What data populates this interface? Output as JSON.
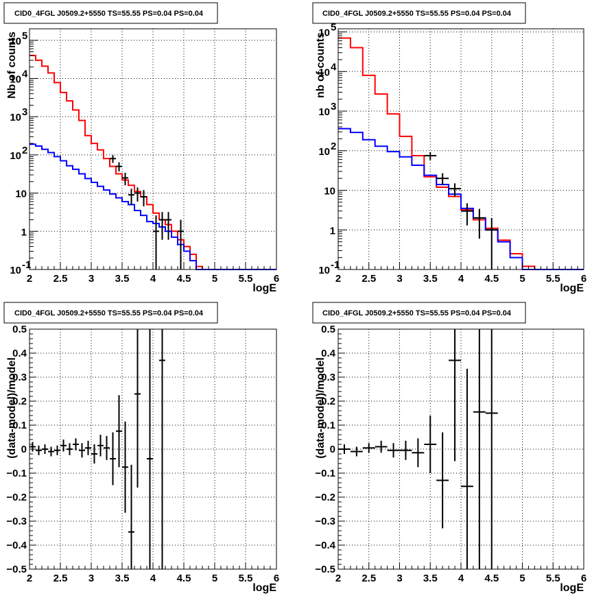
{
  "chart_data": [
    {
      "type": "line",
      "panel": "top-left",
      "title": "CID0_4FGL J0509.2+5550 TS=55.55 PS=0.04 PS=0.04",
      "xlabel": "logE",
      "ylabel": "Nb of counts",
      "xlim": [
        2,
        6
      ],
      "ylim": [
        0.1,
        200000
      ],
      "yscale": "log",
      "grid": true,
      "x_ticks": [
        "2",
        "2.5",
        "3",
        "3.5",
        "4",
        "4.5",
        "5",
        "5.5",
        "6"
      ],
      "y_ticks": [
        {
          "value": 0.1,
          "label": "10",
          "exp": "-1"
        },
        {
          "value": 1,
          "label": "1",
          "exp": ""
        },
        {
          "value": 10,
          "label": "10",
          "exp": ""
        },
        {
          "value": 100,
          "label": "10",
          "exp": "2"
        },
        {
          "value": 1000,
          "label": "10",
          "exp": "3"
        },
        {
          "value": 10000,
          "label": "10",
          "exp": "4"
        },
        {
          "value": 100000,
          "label": "10",
          "exp": "5"
        }
      ],
      "bin_edges": [
        2.0,
        2.1,
        2.2,
        2.3,
        2.4,
        2.5,
        2.6,
        2.7,
        2.8,
        2.9,
        3.0,
        3.1,
        3.2,
        3.3,
        3.4,
        3.5,
        3.6,
        3.7,
        3.8,
        3.9,
        4.0,
        4.1,
        4.2,
        4.3,
        4.4,
        4.5,
        4.6,
        4.7,
        4.8,
        4.9,
        5.0,
        5.1,
        5.2,
        5.3,
        5.4,
        5.5,
        5.6,
        5.7,
        5.8,
        5.9,
        6.0
      ],
      "series": [
        {
          "color": "#ff0000",
          "style": "step",
          "values": [
            40000,
            30000,
            21000,
            14000,
            7800,
            4300,
            2600,
            1500,
            800,
            320,
            200,
            135,
            80,
            50,
            32,
            22,
            16,
            11,
            8,
            5,
            3,
            2,
            1.5,
            1.0,
            0.6,
            0.4,
            0.25,
            0.12,
            0.1,
            0.1,
            0.1,
            0.1,
            0.1,
            0.1,
            0.1,
            0.1,
            0.1,
            0.1,
            0.1,
            0.1
          ]
        },
        {
          "color": "#0000ff",
          "style": "step",
          "values": [
            190,
            170,
            140,
            115,
            90,
            70,
            52,
            42,
            32,
            24,
            19,
            15,
            12,
            9.5,
            7.5,
            6,
            5,
            3.5,
            2.6,
            1.8,
            1.6,
            1.3,
            1.0,
            0.7,
            0.45,
            0.3,
            0.17,
            0.1,
            0.1,
            0.1,
            0.1,
            0.1,
            0.1,
            0.1,
            0.1,
            0.1,
            0.1,
            0.1,
            0.1,
            0.1
          ]
        },
        {
          "color": "#000000",
          "style": "errorbar",
          "points": [
            {
              "x": 3.35,
              "y": 80,
              "lo": 62,
              "hi": 98,
              "xerr": 0.05
            },
            {
              "x": 3.45,
              "y": 50,
              "lo": 37,
              "hi": 64,
              "xerr": 0.05
            },
            {
              "x": 3.55,
              "y": 25,
              "lo": 16,
              "hi": 34,
              "xerr": 0.05
            },
            {
              "x": 3.65,
              "y": 9,
              "lo": 5,
              "hi": 13,
              "xerr": 0.05
            },
            {
              "x": 3.75,
              "y": 10,
              "lo": 6,
              "hi": 14,
              "xerr": 0.05
            },
            {
              "x": 3.85,
              "y": 8,
              "lo": 4.5,
              "hi": 12,
              "xerr": 0.05
            },
            {
              "x": 4.05,
              "y": 1,
              "lo": 0.1,
              "hi": 2.6,
              "xerr": 0.05
            },
            {
              "x": 4.15,
              "y": 2,
              "lo": 0.6,
              "hi": 3.2,
              "xerr": 0.05
            },
            {
              "x": 4.25,
              "y": 2,
              "lo": 0.6,
              "hi": 3.2,
              "xerr": 0.05
            },
            {
              "x": 4.45,
              "y": 1,
              "lo": 0.1,
              "hi": 2.0,
              "xerr": 0.05
            }
          ]
        }
      ]
    },
    {
      "type": "line",
      "panel": "top-right",
      "title": "CID0_4FGL J0509.2+5550 TS=55.55 PS=0.04 PS=0.04",
      "xlabel": "logE",
      "ylabel": "nb of counts",
      "xlim": [
        2,
        6
      ],
      "ylim": [
        0.1,
        120000
      ],
      "yscale": "log",
      "grid": true,
      "x_ticks": [
        "2",
        "2.5",
        "3",
        "3.5",
        "4",
        "4.5",
        "5",
        "5.5",
        "6"
      ],
      "y_ticks": [
        {
          "value": 0.1,
          "label": "10",
          "exp": "-1"
        },
        {
          "value": 1,
          "label": "1",
          "exp": ""
        },
        {
          "value": 10,
          "label": "10",
          "exp": ""
        },
        {
          "value": 100,
          "label": "10",
          "exp": "2"
        },
        {
          "value": 1000,
          "label": "10",
          "exp": "3"
        },
        {
          "value": 10000,
          "label": "10",
          "exp": "4"
        },
        {
          "value": 100000,
          "label": "10",
          "exp": "5"
        }
      ],
      "bin_edges": [
        2.0,
        2.2,
        2.4,
        2.6,
        2.8,
        3.0,
        3.2,
        3.4,
        3.6,
        3.8,
        4.0,
        4.2,
        4.4,
        4.6,
        4.8,
        5.0,
        5.2,
        5.4,
        5.6,
        5.8,
        6.0
      ],
      "series": [
        {
          "color": "#ff0000",
          "style": "step",
          "values": [
            70000,
            40000,
            8000,
            2700,
            850,
            230,
            75,
            22,
            12,
            7,
            3.2,
            1.8,
            1.1,
            0.55,
            0.25,
            0.12,
            0.1,
            0.1,
            0.1,
            0.1
          ]
        },
        {
          "color": "#0000ff",
          "style": "step",
          "values": [
            360,
            290,
            190,
            130,
            95,
            70,
            43,
            24,
            14,
            8,
            3.5,
            2.0,
            1.0,
            0.5,
            0.2,
            0.1,
            0.1,
            0.1,
            0.1,
            0.1
          ]
        },
        {
          "color": "#000000",
          "style": "errorbar",
          "points": [
            {
              "x": 3.5,
              "y": 75,
              "lo": 58,
              "hi": 92,
              "xerr": 0.1
            },
            {
              "x": 3.7,
              "y": 20,
              "lo": 14,
              "hi": 27,
              "xerr": 0.1
            },
            {
              "x": 3.9,
              "y": 11,
              "lo": 7,
              "hi": 15,
              "xerr": 0.1
            },
            {
              "x": 4.1,
              "y": 3,
              "lo": 1.3,
              "hi": 4.7,
              "xerr": 0.1
            },
            {
              "x": 4.3,
              "y": 2,
              "lo": 0.6,
              "hi": 3.4,
              "xerr": 0.1
            },
            {
              "x": 4.5,
              "y": 1,
              "lo": 0.1,
              "hi": 2.0,
              "xerr": 0.1
            }
          ]
        }
      ]
    },
    {
      "type": "scatter",
      "panel": "bottom-left",
      "title": "CID0_4FGL J0509.2+5550 TS=55.55 PS=0.04 PS=0.04",
      "xlabel": "logE",
      "ylabel": "(data-model)/model",
      "xlim": [
        2,
        6
      ],
      "ylim": [
        -0.5,
        0.5
      ],
      "yscale": "linear",
      "grid": true,
      "x_ticks": [
        "2",
        "2.5",
        "3",
        "3.5",
        "4",
        "4.5",
        "5",
        "5.5",
        "6"
      ],
      "y_ticks": [
        {
          "value": -0.5,
          "label": "−0.5"
        },
        {
          "value": -0.4,
          "label": "−0.4"
        },
        {
          "value": -0.3,
          "label": "−0.3"
        },
        {
          "value": -0.2,
          "label": "−0.2"
        },
        {
          "value": -0.1,
          "label": "−0.1"
        },
        {
          "value": 0,
          "label": "0"
        },
        {
          "value": 0.1,
          "label": "0.1"
        },
        {
          "value": 0.2,
          "label": "0.2"
        },
        {
          "value": 0.3,
          "label": "0.3"
        },
        {
          "value": 0.4,
          "label": "0.4"
        },
        {
          "value": 0.5,
          "label": "0.5"
        }
      ],
      "series": [
        {
          "color": "#000000",
          "style": "errorbar",
          "points": [
            {
              "x": 2.05,
              "y": 0.01,
              "err": 0.02,
              "xerr": 0.05
            },
            {
              "x": 2.15,
              "y": -0.005,
              "err": 0.02,
              "xerr": 0.05
            },
            {
              "x": 2.25,
              "y": 0.0,
              "err": 0.02,
              "xerr": 0.05
            },
            {
              "x": 2.35,
              "y": -0.01,
              "err": 0.02,
              "xerr": 0.05
            },
            {
              "x": 2.45,
              "y": -0.005,
              "err": 0.02,
              "xerr": 0.05
            },
            {
              "x": 2.55,
              "y": 0.015,
              "err": 0.025,
              "xerr": 0.05
            },
            {
              "x": 2.65,
              "y": 0.0,
              "err": 0.025,
              "xerr": 0.05
            },
            {
              "x": 2.75,
              "y": 0.02,
              "err": 0.025,
              "xerr": 0.05
            },
            {
              "x": 2.85,
              "y": -0.005,
              "err": 0.03,
              "xerr": 0.05
            },
            {
              "x": 2.95,
              "y": 0.005,
              "err": 0.03,
              "xerr": 0.05
            },
            {
              "x": 3.05,
              "y": -0.02,
              "err": 0.04,
              "xerr": 0.05
            },
            {
              "x": 3.15,
              "y": 0.015,
              "err": 0.045,
              "xerr": 0.05
            },
            {
              "x": 3.25,
              "y": 0.005,
              "err": 0.05,
              "xerr": 0.05
            },
            {
              "x": 3.35,
              "y": -0.04,
              "err": 0.11,
              "xerr": 0.05
            },
            {
              "x": 3.45,
              "y": 0.075,
              "err": 0.15,
              "xerr": 0.05
            },
            {
              "x": 3.55,
              "y": -0.075,
              "err": 0.19,
              "xerr": 0.05
            },
            {
              "x": 3.65,
              "y": -0.345,
              "err": 0.28,
              "xerr": 0.05
            },
            {
              "x": 3.75,
              "y": 0.23,
              "err": 0.39,
              "xerr": 0.05
            },
            {
              "x": 3.95,
              "y": -0.04,
              "err": 0.6,
              "xerr": 0.05
            },
            {
              "x": 4.15,
              "y": 0.37,
              "err": 1.0,
              "xerr": 0.05
            }
          ]
        }
      ]
    },
    {
      "type": "scatter",
      "panel": "bottom-right",
      "title": "CID0_4FGL J0509.2+5550 TS=55.55 PS=0.04 PS=0.04",
      "xlabel": "logE",
      "ylabel": "(data-model)/model",
      "xlim": [
        2,
        6
      ],
      "ylim": [
        -0.5,
        0.5
      ],
      "yscale": "linear",
      "grid": true,
      "x_ticks": [
        "2",
        "2.5",
        "3",
        "3.5",
        "4",
        "4.5",
        "5",
        "5.5",
        "6"
      ],
      "y_ticks": [
        {
          "value": -0.5,
          "label": "−0.5"
        },
        {
          "value": -0.4,
          "label": "−0.4"
        },
        {
          "value": -0.3,
          "label": "−0.3"
        },
        {
          "value": -0.2,
          "label": "−0.2"
        },
        {
          "value": -0.1,
          "label": "−0.1"
        },
        {
          "value": 0,
          "label": "0"
        },
        {
          "value": 0.1,
          "label": "0.1"
        },
        {
          "value": 0.2,
          "label": "0.2"
        },
        {
          "value": 0.3,
          "label": "0.3"
        },
        {
          "value": 0.4,
          "label": "0.4"
        },
        {
          "value": 0.5,
          "label": "0.5"
        }
      ],
      "series": [
        {
          "color": "#000000",
          "style": "errorbar",
          "points": [
            {
              "x": 2.1,
              "y": 0.0,
              "err": 0.02,
              "xerr": 0.1
            },
            {
              "x": 2.3,
              "y": -0.01,
              "err": 0.02,
              "xerr": 0.1
            },
            {
              "x": 2.5,
              "y": 0.005,
              "err": 0.02,
              "xerr": 0.1
            },
            {
              "x": 2.7,
              "y": 0.01,
              "err": 0.025,
              "xerr": 0.1
            },
            {
              "x": 2.9,
              "y": -0.005,
              "err": 0.03,
              "xerr": 0.1
            },
            {
              "x": 3.1,
              "y": -0.005,
              "err": 0.04,
              "xerr": 0.1
            },
            {
              "x": 3.3,
              "y": -0.015,
              "err": 0.06,
              "xerr": 0.1
            },
            {
              "x": 3.5,
              "y": 0.02,
              "err": 0.12,
              "xerr": 0.1
            },
            {
              "x": 3.7,
              "y": -0.13,
              "err": 0.2,
              "xerr": 0.1
            },
            {
              "x": 3.9,
              "y": 0.37,
              "err": 0.42,
              "xerr": 0.1
            },
            {
              "x": 4.1,
              "y": -0.155,
              "err": 0.49,
              "xerr": 0.1
            },
            {
              "x": 4.3,
              "y": 0.155,
              "err": 0.9,
              "xerr": 0.1
            },
            {
              "x": 4.5,
              "y": 0.15,
              "err": 0.9,
              "xerr": 0.1
            }
          ]
        }
      ]
    }
  ]
}
